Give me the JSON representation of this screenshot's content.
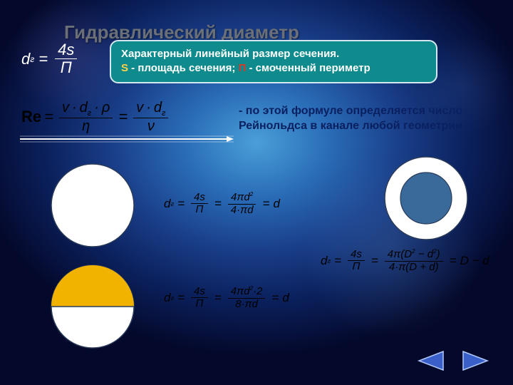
{
  "title": "Гидравлический диаметр",
  "formula_d_top": {
    "d": "d",
    "sub": "г",
    "eq": "=",
    "num": "4s",
    "den": "П"
  },
  "callout": {
    "bg": "#0f8b8d",
    "border": "#d4e8f0",
    "line1": "Характерный линейный размер сечения.",
    "s_symbol": "S",
    "s_text": " - площадь сечения; ",
    "p_symbol": "П",
    "p_text": " - смоченный периметр"
  },
  "reynolds": {
    "Re": "Re",
    "eq": "=",
    "num1_a": "v",
    "num1_b": "d",
    "num1_sub": "г",
    "num1_c": "ρ",
    "den1": "η",
    "num2_a": "v",
    "num2_b": "d",
    "num2_sub": "г",
    "den2": "ν",
    "cdot": "·"
  },
  "arrow": {
    "stroke": "#ffffff",
    "width": 2
  },
  "reynolds_note": "- по этой формуле определяется число Рейнольдса в канале любой геометрии",
  "reynolds_note_color": "#0a2060",
  "shapes": {
    "full_circle": {
      "r": 58,
      "fill": "#ffffff",
      "stroke": "#2a3b5a"
    },
    "half_circle": {
      "r": 58,
      "top_fill": "#f2b200",
      "bottom_fill": "#ffffff",
      "stroke": "#2a3b5a"
    },
    "ring": {
      "outer_r": 58,
      "inner_r": 36,
      "ring_fill": "#ffffff",
      "hole_fill": "#3a6a9a",
      "stroke": "#2a3b5a"
    }
  },
  "formula_full": {
    "d": "d",
    "sub": "г",
    "eq": "=",
    "num1": "4s",
    "den1": "П",
    "num2_a": "4π",
    "num2_b": "d",
    "num2_sup": "2",
    "den2_a": "4·π",
    "den2_b": "d",
    "result": "d"
  },
  "formula_half": {
    "d": "d",
    "sub": "г",
    "eq": "=",
    "num1": "4s",
    "den1": "П",
    "num2_a": "4π",
    "num2_b": "d",
    "num2_sup": "2",
    "num2_c": "·2",
    "den2_a": "8·π",
    "den2_b": "d",
    "result": "d"
  },
  "formula_ring": {
    "d": "d",
    "sub": "г",
    "eq": "=",
    "num1": "4s",
    "den1": "П",
    "num2_a": "4π(",
    "num2_b": "D",
    "num2_sup1": "2",
    "num2_c": " − ",
    "num2_d": "d",
    "num2_sup2": "2",
    "num2_e": ")",
    "den2_a": "4·π(",
    "den2_b": "D + d",
    "den2_c": ")",
    "result": "D − d"
  },
  "nav": {
    "prev_fill": "#3a5fc8",
    "next_fill": "#3a5fc8",
    "outline": "#b0c8ff"
  }
}
